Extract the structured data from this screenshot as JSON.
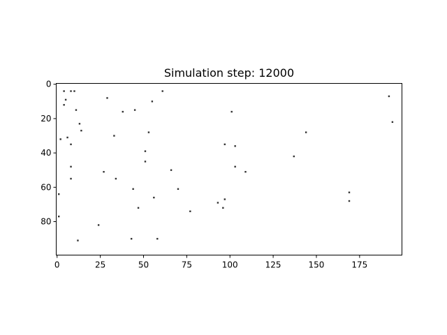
{
  "chart_data": {
    "type": "scatter",
    "title": "Simulation step: 12000",
    "xlabel": "",
    "ylabel": "",
    "xlim": [
      -0.5,
      199.5
    ],
    "ylim": [
      99.5,
      -0.5
    ],
    "y_inverted": true,
    "grid": false,
    "legend": "none",
    "xticks": [
      0,
      25,
      50,
      75,
      100,
      125,
      150,
      175
    ],
    "yticks": [
      0,
      20,
      40,
      60,
      80
    ],
    "marker_color": "#333333",
    "points": [
      {
        "x": 4,
        "y": 4
      },
      {
        "x": 8,
        "y": 4
      },
      {
        "x": 10,
        "y": 4
      },
      {
        "x": 5,
        "y": 9
      },
      {
        "x": 4,
        "y": 12
      },
      {
        "x": 11,
        "y": 15
      },
      {
        "x": 29,
        "y": 8
      },
      {
        "x": 38,
        "y": 16
      },
      {
        "x": 45,
        "y": 15
      },
      {
        "x": 55,
        "y": 10
      },
      {
        "x": 61,
        "y": 4
      },
      {
        "x": 101,
        "y": 16
      },
      {
        "x": 192,
        "y": 7
      },
      {
        "x": 194,
        "y": 22
      },
      {
        "x": 13,
        "y": 23
      },
      {
        "x": 14,
        "y": 27
      },
      {
        "x": 2,
        "y": 32
      },
      {
        "x": 6,
        "y": 31
      },
      {
        "x": 8,
        "y": 35
      },
      {
        "x": 33,
        "y": 30
      },
      {
        "x": 53,
        "y": 28
      },
      {
        "x": 144,
        "y": 28
      },
      {
        "x": 97,
        "y": 35
      },
      {
        "x": 103,
        "y": 36
      },
      {
        "x": 51,
        "y": 39
      },
      {
        "x": 51,
        "y": 45
      },
      {
        "x": 137,
        "y": 42
      },
      {
        "x": 8,
        "y": 48
      },
      {
        "x": 103,
        "y": 48
      },
      {
        "x": 27,
        "y": 51
      },
      {
        "x": 66,
        "y": 50
      },
      {
        "x": 109,
        "y": 51
      },
      {
        "x": 8,
        "y": 55
      },
      {
        "x": 34,
        "y": 55
      },
      {
        "x": 44,
        "y": 61
      },
      {
        "x": 70,
        "y": 61
      },
      {
        "x": 1,
        "y": 64
      },
      {
        "x": 169,
        "y": 63
      },
      {
        "x": 56,
        "y": 66
      },
      {
        "x": 97,
        "y": 67
      },
      {
        "x": 169,
        "y": 68
      },
      {
        "x": 93,
        "y": 69
      },
      {
        "x": 47,
        "y": 72
      },
      {
        "x": 96,
        "y": 72
      },
      {
        "x": 77,
        "y": 74
      },
      {
        "x": 1,
        "y": 77
      },
      {
        "x": 24,
        "y": 82
      },
      {
        "x": 43,
        "y": 90
      },
      {
        "x": 58,
        "y": 90
      },
      {
        "x": 12,
        "y": 91
      }
    ]
  }
}
